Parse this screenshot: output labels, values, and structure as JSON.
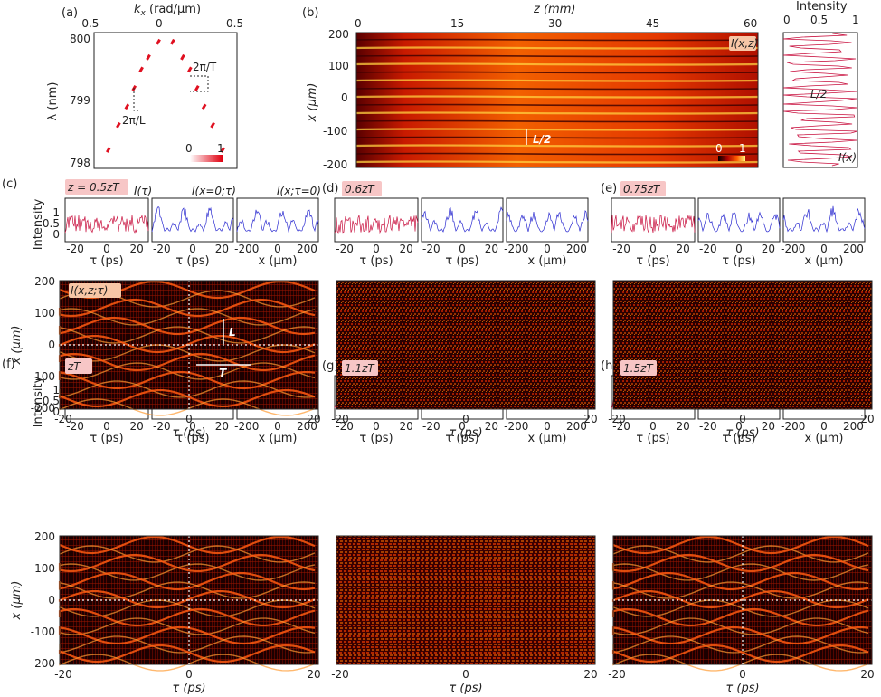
{
  "panels": {
    "a": "(a)",
    "b": "(b)",
    "c": "(c)",
    "d": "(d)",
    "e": "(e)",
    "f": "(f)",
    "g": "(g)",
    "h": "(h)"
  },
  "a": {
    "xlabel_pre": "k",
    "xlabel_sub": "x",
    "xlabel_post": " (rad/μm)",
    "ylabel": "λ (nm)",
    "xticks": [
      "-0.5",
      "0",
      "0.5"
    ],
    "yticks": [
      "800",
      "799",
      "798"
    ],
    "ann_L": "2π/L",
    "ann_T": "2π/T",
    "cbar": [
      "0",
      "1"
    ]
  },
  "b": {
    "xlabel": "z (mm)",
    "ylabel": "x (μm)",
    "xticks": [
      "0",
      "15",
      "30",
      "45",
      "60"
    ],
    "yticks": [
      "200",
      "100",
      "0",
      "-100",
      "-200"
    ],
    "tag": "I(x,z)",
    "ann": "L/2",
    "cbar": [
      "0",
      "1"
    ],
    "side_title": "Intensity",
    "side_ticks": [
      "0",
      "0.5",
      "1"
    ],
    "side_ann": "L/2",
    "side_label": "I(x)"
  },
  "rows": {
    "ylabel": "Intensity",
    "yticks": [
      "1",
      "0.5",
      "0"
    ],
    "tau_ticks": [
      "-20",
      "0",
      "20"
    ],
    "x_ticks": [
      "-200",
      "0",
      "200"
    ],
    "tau_label": "τ (ps)",
    "x_label": "x (μm)",
    "c_tags": [
      "I(τ)",
      "I(x=0;τ)",
      "I(x;τ=0)"
    ],
    "c_T": "T",
    "c_L": "L"
  },
  "tags": {
    "c": "z = 0.5zT",
    "d": "0.6zT",
    "e": "0.75zT",
    "f": "zT",
    "g": "1.1zT",
    "h": "1.5zT"
  },
  "heat": {
    "ylabel": "x (μm)",
    "yticks": [
      "200",
      "100",
      "0",
      "-100",
      "-200"
    ],
    "xticks": [
      "-20",
      "0",
      "20"
    ],
    "xlabel": "τ (ps)",
    "c_tag": "I(x,z;τ)",
    "L": "L",
    "T": "T"
  },
  "colors": {
    "trace_tau": "#c8103e",
    "trace_x": "#2a2ad0",
    "tag_bg": "#f7c6c6",
    "hot_mid": "#d02000"
  },
  "chart_data": [
    {
      "type": "scatter",
      "panel": "a",
      "xlabel": "kx (rad/μm)",
      "ylabel": "λ (nm)",
      "xlim": [
        -0.5,
        0.5
      ],
      "ylim": [
        797.9,
        800.1
      ],
      "x": [
        -0.4,
        -0.33,
        -0.27,
        -0.22,
        -0.17,
        -0.12,
        -0.05,
        0.05,
        0.12,
        0.17,
        0.22,
        0.27,
        0.33,
        0.4
      ],
      "y": [
        798.2,
        798.6,
        798.9,
        799.2,
        799.5,
        799.7,
        799.95,
        799.95,
        799.7,
        799.5,
        799.2,
        798.9,
        798.6,
        798.2
      ]
    },
    {
      "type": "heatmap",
      "panel": "b",
      "xlabel": "z (mm)",
      "ylabel": "x (μm)",
      "xlim": [
        0,
        60
      ],
      "ylim": [
        -200,
        200
      ]
    },
    {
      "type": "heatmap",
      "panel": "c-h",
      "xlabel": "τ (ps)",
      "ylabel": "x (μm)",
      "xlim": [
        -20,
        20
      ],
      "ylim": [
        -200,
        200
      ]
    }
  ]
}
